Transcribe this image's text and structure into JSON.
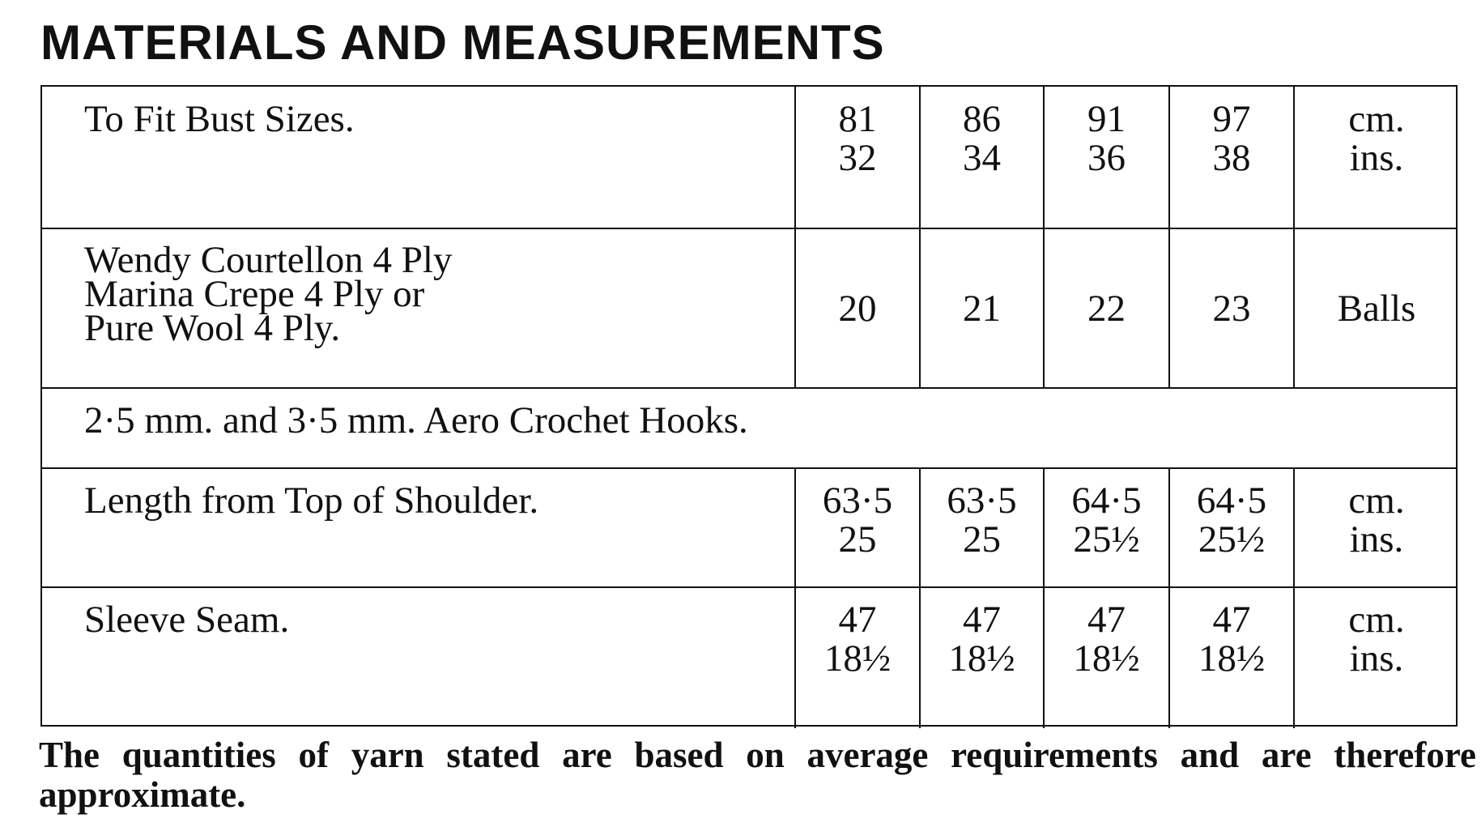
{
  "header": {
    "title": "MATERIALS AND MEASUREMENTS"
  },
  "table": {
    "rows": [
      {
        "label": [
          "To Fit Bust Sizes."
        ],
        "cells": [
          [
            "81",
            "32"
          ],
          [
            "86",
            "34"
          ],
          [
            "91",
            "36"
          ],
          [
            "97",
            "38"
          ]
        ],
        "unit": [
          "cm.",
          "ins."
        ]
      },
      {
        "label": [
          "Wendy Courtellon 4 Ply",
          "Marina Crepe 4 Ply or",
          "Pure Wool 4 Ply."
        ],
        "cells": [
          [
            "20"
          ],
          [
            "21"
          ],
          [
            "22"
          ],
          [
            "23"
          ]
        ],
        "unit": [
          "Balls"
        ]
      },
      {
        "text": "2·5 mm. and 3·5 mm. Aero Crochet Hooks."
      },
      {
        "label": [
          "Length from Top of Shoulder."
        ],
        "cells": [
          [
            "63·5",
            "25"
          ],
          [
            "63·5",
            "25"
          ],
          [
            "64·5",
            "25½"
          ],
          [
            "64·5",
            "25½"
          ]
        ],
        "unit": [
          "cm.",
          "ins."
        ]
      },
      {
        "label": [
          "Sleeve Seam."
        ],
        "cells": [
          [
            "47",
            "18½"
          ],
          [
            "47",
            "18½"
          ],
          [
            "47",
            "18½"
          ],
          [
            "47",
            "18½"
          ]
        ],
        "unit": [
          "cm.",
          "ins."
        ]
      }
    ]
  },
  "footnote": "The quantities of yarn stated are based on average requirements and are therefore approximate."
}
